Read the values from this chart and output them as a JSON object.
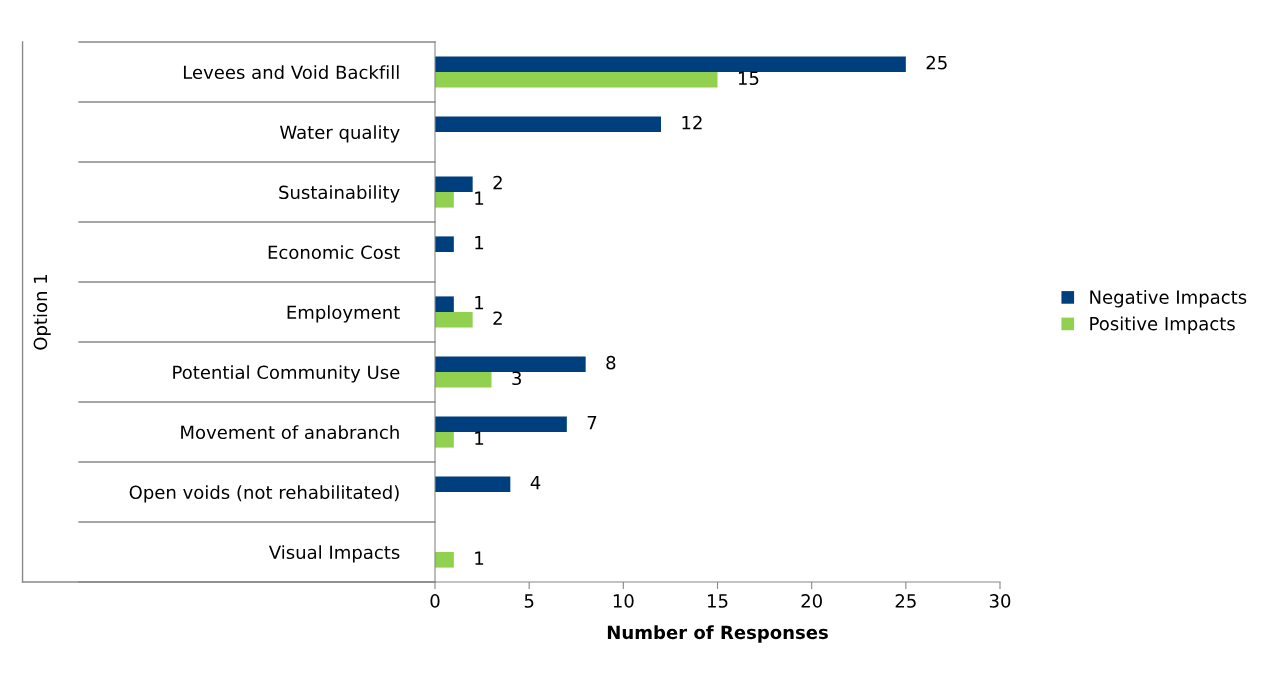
{
  "chart_data": {
    "type": "bar",
    "orientation": "horizontal",
    "categories": [
      "Levees and Void Backfill",
      "Water quality",
      "Sustainability",
      "Economic Cost",
      "Employment",
      "Potential Community Use",
      "Movement of anabranch",
      "Open voids (not rehabilitated)",
      "Visual Impacts"
    ],
    "series": [
      {
        "name": "Negative Impacts",
        "color": "#003f7d",
        "values": [
          25,
          12,
          2,
          1,
          1,
          8,
          7,
          4,
          null
        ]
      },
      {
        "name": "Positive Impacts",
        "color": "#92d050",
        "values": [
          15,
          null,
          1,
          null,
          2,
          3,
          1,
          null,
          1
        ]
      }
    ],
    "xlabel": "Number of Responses",
    "ylabel": "Option 1",
    "xlim": [
      0,
      30
    ],
    "xticks": [
      0,
      5,
      10,
      15,
      20,
      25,
      30
    ],
    "data_labels": true,
    "grid": false,
    "legend": "right"
  }
}
